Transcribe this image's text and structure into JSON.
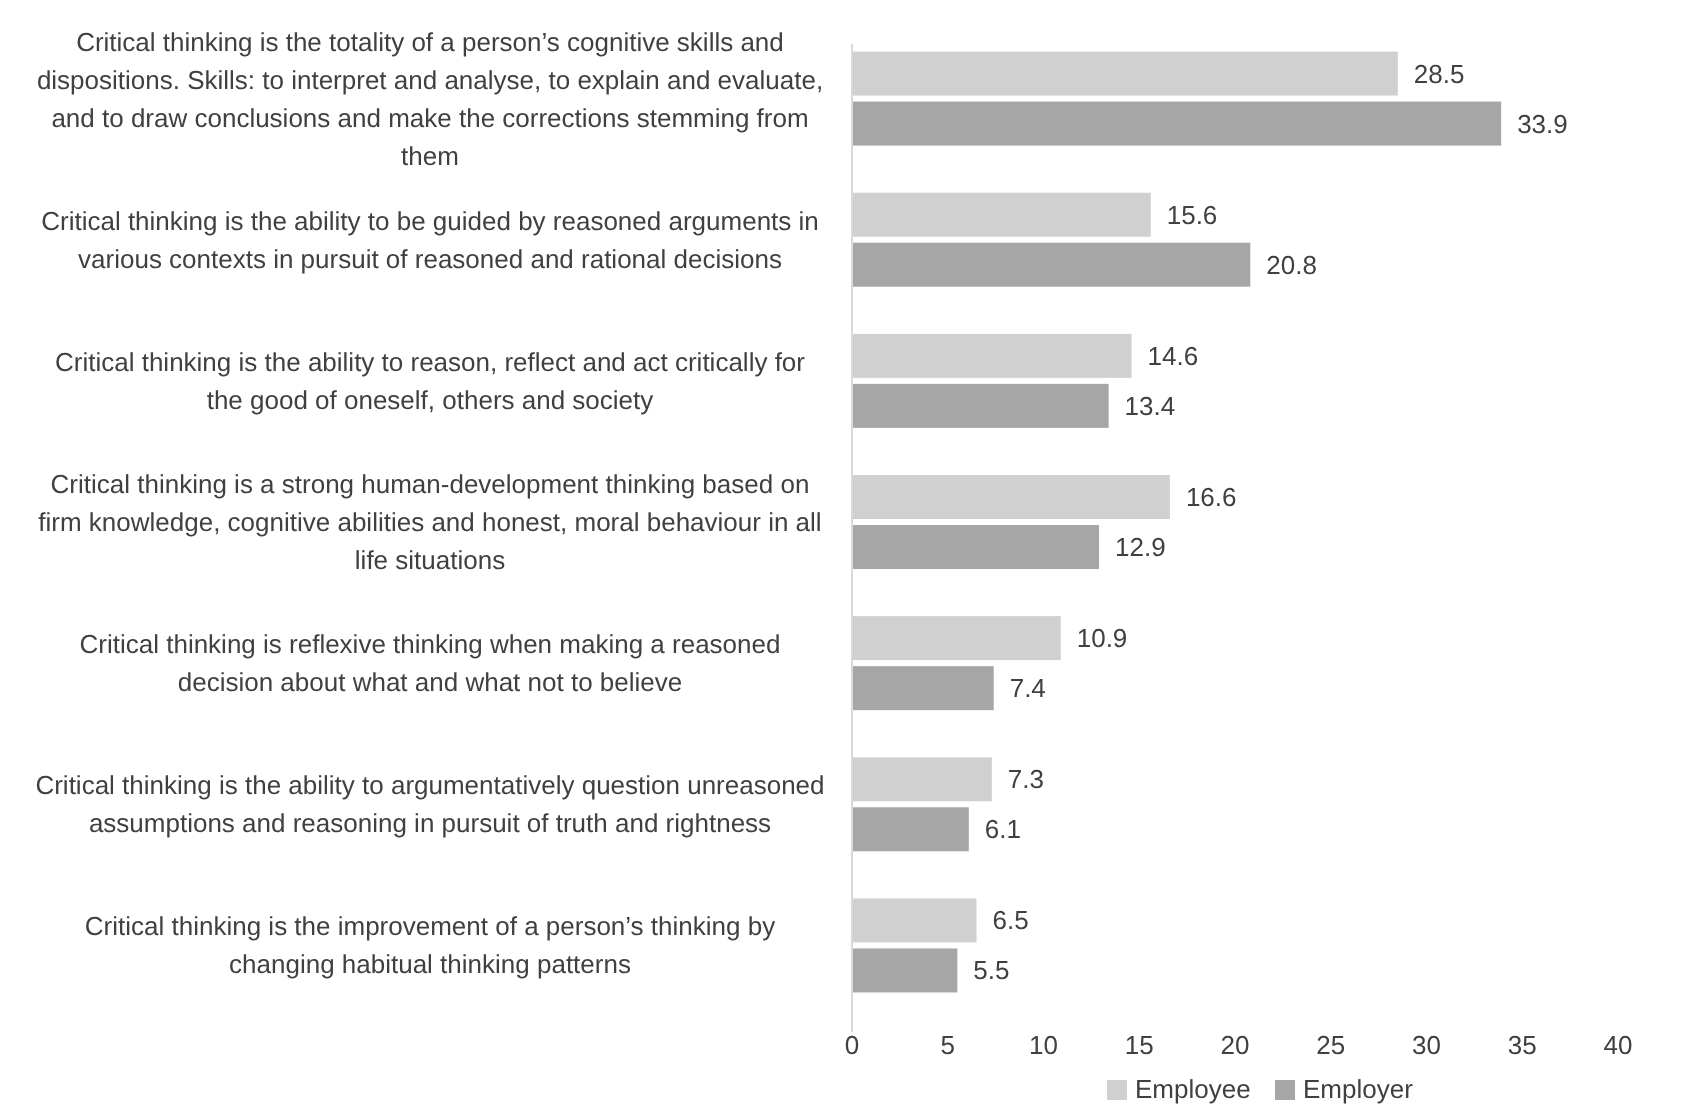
{
  "chart_data": {
    "type": "bar",
    "orientation": "horizontal",
    "categories": [
      "Critical thinking is the totality of a person’s cognitive skills and dispositions. Skills: to interpret and analyse, to explain and evaluate,  and to draw conclusions and make the corrections stemming from them",
      "Critical thinking is the ability to be guided by reasoned arguments in various contexts in pursuit of reasoned and rational decisions",
      "Critical thinking is the ability to reason, reflect and act critically for the good of oneself, others and society",
      "Critical thinking is a strong human-development thinking based on firm knowledge, cognitive abilities and honest, moral behaviour in all life situations",
      "Critical thinking is reflexive thinking when making a reasoned decision about what and what not to believe",
      "Critical thinking is the ability to argumentatively question unreasoned assumptions and reasoning in pursuit of truth and rightness",
      "Critical thinking is the improvement of a person’s thinking by changing habitual thinking patterns"
    ],
    "series": [
      {
        "name": "Employee",
        "color": "#d0d0d0",
        "values": [
          28.5,
          15.6,
          14.6,
          16.6,
          10.9,
          7.3,
          6.5
        ]
      },
      {
        "name": "Employer",
        "color": "#a6a6a6",
        "values": [
          33.9,
          20.8,
          13.4,
          12.9,
          7.4,
          6.1,
          5.5
        ]
      }
    ],
    "xlim": [
      0,
      40
    ],
    "xticks": [
      0,
      5,
      10,
      15,
      20,
      25,
      30,
      35,
      40
    ],
    "data_labels": true,
    "legend": "bottom",
    "grid": false
  }
}
